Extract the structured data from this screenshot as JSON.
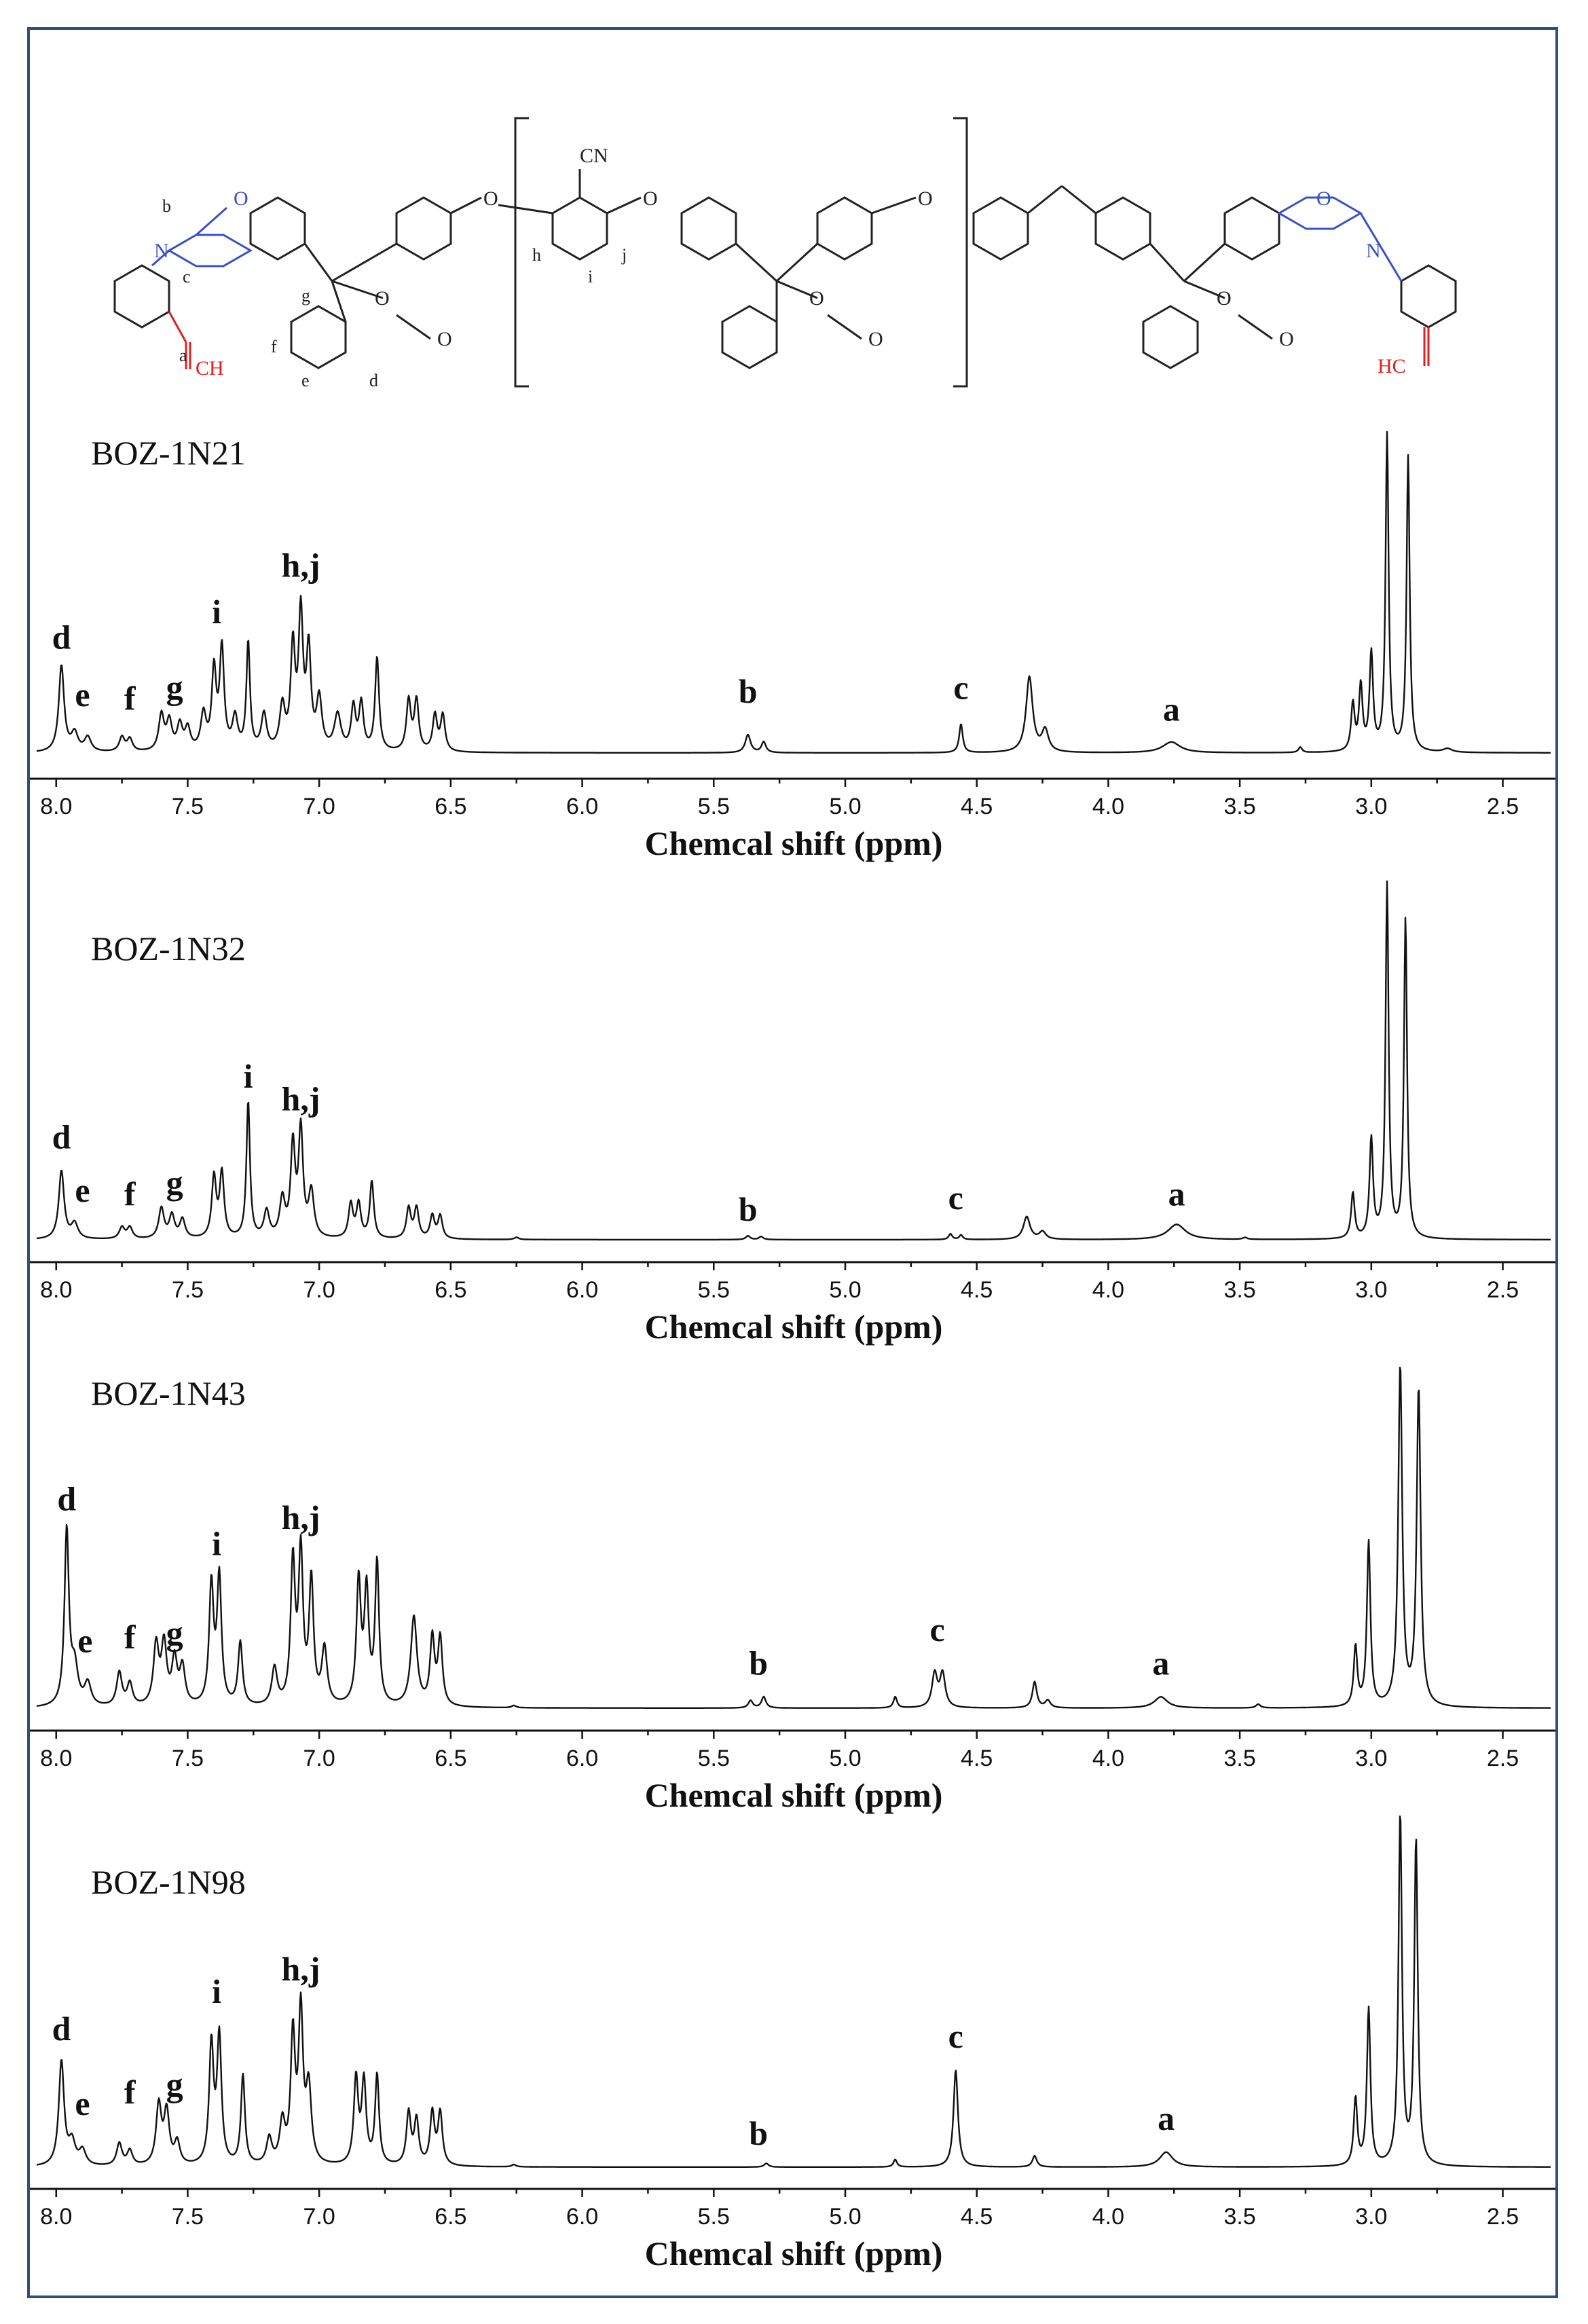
{
  "chart_data": {
    "type": "line",
    "x_axis": {
      "label": "Chemcal shift (ppm)",
      "ticks": [
        "8.0",
        "7.5",
        "7.0",
        "6.5",
        "6.0",
        "5.5",
        "5.0",
        "4.5",
        "4.0",
        "3.5",
        "3.0",
        "2.5"
      ],
      "xlim": [
        8.1,
        2.3
      ],
      "reversed": true
    },
    "structure_labels": {
      "ring_o": "O",
      "ring_n": "N",
      "alkyne_left": "CH",
      "alkyne_right": "HC",
      "cn": "CN",
      "ether_o": "O",
      "lactone_o": "O",
      "carbonyl_o": "O",
      "letters": [
        "a",
        "b",
        "c",
        "d",
        "e",
        "f",
        "g",
        "h",
        "i",
        "j"
      ]
    },
    "panels": [
      {
        "title": "BOZ-1N21",
        "peaks": [
          {
            "ppm": 7.98,
            "h": 0.24,
            "w": 0.012
          },
          {
            "ppm": 7.93,
            "h": 0.05,
            "w": 0.015
          },
          {
            "ppm": 7.88,
            "h": 0.04,
            "w": 0.015
          },
          {
            "ppm": 7.75,
            "h": 0.04,
            "w": 0.012
          },
          {
            "ppm": 7.72,
            "h": 0.035,
            "w": 0.012
          },
          {
            "ppm": 7.6,
            "h": 0.1,
            "w": 0.012
          },
          {
            "ppm": 7.57,
            "h": 0.08,
            "w": 0.012
          },
          {
            "ppm": 7.53,
            "h": 0.07,
            "w": 0.012
          },
          {
            "ppm": 7.5,
            "h": 0.06,
            "w": 0.012
          },
          {
            "ppm": 7.44,
            "h": 0.1,
            "w": 0.012
          },
          {
            "ppm": 7.4,
            "h": 0.22,
            "w": 0.01
          },
          {
            "ppm": 7.37,
            "h": 0.28,
            "w": 0.01
          },
          {
            "ppm": 7.32,
            "h": 0.09,
            "w": 0.012
          },
          {
            "ppm": 7.27,
            "h": 0.3,
            "w": 0.008
          },
          {
            "ppm": 7.21,
            "h": 0.1,
            "w": 0.012
          },
          {
            "ppm": 7.14,
            "h": 0.12,
            "w": 0.012
          },
          {
            "ppm": 7.1,
            "h": 0.28,
            "w": 0.01
          },
          {
            "ppm": 7.07,
            "h": 0.37,
            "w": 0.01
          },
          {
            "ppm": 7.04,
            "h": 0.27,
            "w": 0.01
          },
          {
            "ppm": 7.0,
            "h": 0.14,
            "w": 0.012
          },
          {
            "ppm": 6.93,
            "h": 0.1,
            "w": 0.015
          },
          {
            "ppm": 6.87,
            "h": 0.12,
            "w": 0.01
          },
          {
            "ppm": 6.84,
            "h": 0.13,
            "w": 0.01
          },
          {
            "ppm": 6.78,
            "h": 0.26,
            "w": 0.009
          },
          {
            "ppm": 6.66,
            "h": 0.14,
            "w": 0.01
          },
          {
            "ppm": 6.63,
            "h": 0.14,
            "w": 0.01
          },
          {
            "ppm": 6.56,
            "h": 0.1,
            "w": 0.01
          },
          {
            "ppm": 6.53,
            "h": 0.1,
            "w": 0.01
          },
          {
            "ppm": 5.37,
            "h": 0.05,
            "w": 0.012
          },
          {
            "ppm": 5.31,
            "h": 0.03,
            "w": 0.01
          },
          {
            "ppm": 4.56,
            "h": 0.08,
            "w": 0.008
          },
          {
            "ppm": 4.3,
            "h": 0.21,
            "w": 0.015
          },
          {
            "ppm": 4.24,
            "h": 0.06,
            "w": 0.015
          },
          {
            "ppm": 3.76,
            "h": 0.03,
            "w": 0.04
          },
          {
            "ppm": 3.27,
            "h": 0.015,
            "w": 0.008
          },
          {
            "ppm": 3.07,
            "h": 0.13,
            "w": 0.008
          },
          {
            "ppm": 3.04,
            "h": 0.18,
            "w": 0.008
          },
          {
            "ppm": 3.0,
            "h": 0.27,
            "w": 0.008
          },
          {
            "ppm": 2.94,
            "h": 0.88,
            "w": 0.007
          },
          {
            "ppm": 2.86,
            "h": 0.82,
            "w": 0.007
          },
          {
            "ppm": 2.71,
            "h": 0.01,
            "w": 0.02
          }
        ],
        "labels": [
          {
            "text": "d",
            "ppm": 7.98,
            "h": 0.29
          },
          {
            "text": "e",
            "ppm": 7.9,
            "h": 0.13
          },
          {
            "text": "f",
            "ppm": 7.72,
            "h": 0.12
          },
          {
            "text": "g",
            "ppm": 7.55,
            "h": 0.15
          },
          {
            "text": "i",
            "ppm": 7.39,
            "h": 0.36
          },
          {
            "text": "h,j",
            "ppm": 7.07,
            "h": 0.49
          },
          {
            "text": "b",
            "ppm": 5.37,
            "h": 0.14
          },
          {
            "text": "c",
            "ppm": 4.56,
            "h": 0.15
          },
          {
            "text": "a",
            "ppm": 3.76,
            "h": 0.09
          }
        ]
      },
      {
        "title": "BOZ-1N32",
        "peaks": [
          {
            "ppm": 7.98,
            "h": 0.18,
            "w": 0.012
          },
          {
            "ppm": 7.93,
            "h": 0.04,
            "w": 0.015
          },
          {
            "ppm": 7.75,
            "h": 0.03,
            "w": 0.012
          },
          {
            "ppm": 7.72,
            "h": 0.03,
            "w": 0.012
          },
          {
            "ppm": 7.6,
            "h": 0.08,
            "w": 0.012
          },
          {
            "ppm": 7.56,
            "h": 0.06,
            "w": 0.012
          },
          {
            "ppm": 7.52,
            "h": 0.05,
            "w": 0.012
          },
          {
            "ppm": 7.4,
            "h": 0.16,
            "w": 0.01
          },
          {
            "ppm": 7.37,
            "h": 0.17,
            "w": 0.01
          },
          {
            "ppm": 7.27,
            "h": 0.36,
            "w": 0.008
          },
          {
            "ppm": 7.2,
            "h": 0.07,
            "w": 0.012
          },
          {
            "ppm": 7.14,
            "h": 0.1,
            "w": 0.012
          },
          {
            "ppm": 7.1,
            "h": 0.24,
            "w": 0.01
          },
          {
            "ppm": 7.07,
            "h": 0.28,
            "w": 0.01
          },
          {
            "ppm": 7.03,
            "h": 0.12,
            "w": 0.012
          },
          {
            "ppm": 6.88,
            "h": 0.09,
            "w": 0.01
          },
          {
            "ppm": 6.85,
            "h": 0.09,
            "w": 0.01
          },
          {
            "ppm": 6.8,
            "h": 0.15,
            "w": 0.009
          },
          {
            "ppm": 6.66,
            "h": 0.08,
            "w": 0.01
          },
          {
            "ppm": 6.63,
            "h": 0.08,
            "w": 0.01
          },
          {
            "ppm": 6.57,
            "h": 0.06,
            "w": 0.01
          },
          {
            "ppm": 6.54,
            "h": 0.06,
            "w": 0.01
          },
          {
            "ppm": 6.25,
            "h": 0.006,
            "w": 0.01
          },
          {
            "ppm": 5.37,
            "h": 0.01,
            "w": 0.01
          },
          {
            "ppm": 5.32,
            "h": 0.008,
            "w": 0.01
          },
          {
            "ppm": 4.6,
            "h": 0.015,
            "w": 0.008
          },
          {
            "ppm": 4.56,
            "h": 0.012,
            "w": 0.008
          },
          {
            "ppm": 4.31,
            "h": 0.06,
            "w": 0.015
          },
          {
            "ppm": 4.25,
            "h": 0.02,
            "w": 0.015
          },
          {
            "ppm": 3.74,
            "h": 0.04,
            "w": 0.04
          },
          {
            "ppm": 3.48,
            "h": 0.005,
            "w": 0.01
          },
          {
            "ppm": 3.07,
            "h": 0.12,
            "w": 0.008
          },
          {
            "ppm": 3.0,
            "h": 0.26,
            "w": 0.008
          },
          {
            "ppm": 2.94,
            "h": 0.93,
            "w": 0.007
          },
          {
            "ppm": 2.87,
            "h": 0.84,
            "w": 0.007
          }
        ],
        "labels": [
          {
            "text": "d",
            "ppm": 7.98,
            "h": 0.24
          },
          {
            "text": "e",
            "ppm": 7.9,
            "h": 0.1
          },
          {
            "text": "f",
            "ppm": 7.72,
            "h": 0.09
          },
          {
            "text": "g",
            "ppm": 7.55,
            "h": 0.12
          },
          {
            "text": "i",
            "ppm": 7.27,
            "h": 0.4
          },
          {
            "text": "h,j",
            "ppm": 7.07,
            "h": 0.34
          },
          {
            "text": "b",
            "ppm": 5.37,
            "h": 0.05
          },
          {
            "text": "c",
            "ppm": 4.58,
            "h": 0.08
          },
          {
            "text": "a",
            "ppm": 3.74,
            "h": 0.09
          }
        ]
      },
      {
        "title": "BOZ-1N43",
        "peaks": [
          {
            "ppm": 7.96,
            "h": 0.47,
            "w": 0.01
          },
          {
            "ppm": 7.93,
            "h": 0.1,
            "w": 0.015
          },
          {
            "ppm": 7.88,
            "h": 0.06,
            "w": 0.015
          },
          {
            "ppm": 7.76,
            "h": 0.09,
            "w": 0.012
          },
          {
            "ppm": 7.72,
            "h": 0.06,
            "w": 0.012
          },
          {
            "ppm": 7.62,
            "h": 0.16,
            "w": 0.012
          },
          {
            "ppm": 7.59,
            "h": 0.16,
            "w": 0.012
          },
          {
            "ppm": 7.55,
            "h": 0.12,
            "w": 0.012
          },
          {
            "ppm": 7.52,
            "h": 0.1,
            "w": 0.012
          },
          {
            "ppm": 7.41,
            "h": 0.32,
            "w": 0.01
          },
          {
            "ppm": 7.38,
            "h": 0.34,
            "w": 0.01
          },
          {
            "ppm": 7.3,
            "h": 0.17,
            "w": 0.01
          },
          {
            "ppm": 7.17,
            "h": 0.1,
            "w": 0.012
          },
          {
            "ppm": 7.1,
            "h": 0.38,
            "w": 0.01
          },
          {
            "ppm": 7.07,
            "h": 0.4,
            "w": 0.01
          },
          {
            "ppm": 7.03,
            "h": 0.33,
            "w": 0.01
          },
          {
            "ppm": 6.98,
            "h": 0.15,
            "w": 0.012
          },
          {
            "ppm": 6.85,
            "h": 0.33,
            "w": 0.01
          },
          {
            "ppm": 6.82,
            "h": 0.3,
            "w": 0.01
          },
          {
            "ppm": 6.78,
            "h": 0.38,
            "w": 0.009
          },
          {
            "ppm": 6.64,
            "h": 0.24,
            "w": 0.014
          },
          {
            "ppm": 6.57,
            "h": 0.18,
            "w": 0.01
          },
          {
            "ppm": 6.54,
            "h": 0.18,
            "w": 0.01
          },
          {
            "ppm": 6.26,
            "h": 0.006,
            "w": 0.01
          },
          {
            "ppm": 5.36,
            "h": 0.02,
            "w": 0.01
          },
          {
            "ppm": 5.31,
            "h": 0.03,
            "w": 0.01
          },
          {
            "ppm": 4.81,
            "h": 0.03,
            "w": 0.008
          },
          {
            "ppm": 4.66,
            "h": 0.09,
            "w": 0.012
          },
          {
            "ppm": 4.63,
            "h": 0.09,
            "w": 0.012
          },
          {
            "ppm": 4.28,
            "h": 0.07,
            "w": 0.01
          },
          {
            "ppm": 4.23,
            "h": 0.02,
            "w": 0.012
          },
          {
            "ppm": 3.8,
            "h": 0.03,
            "w": 0.03
          },
          {
            "ppm": 3.43,
            "h": 0.01,
            "w": 0.01
          },
          {
            "ppm": 3.06,
            "h": 0.16,
            "w": 0.008
          },
          {
            "ppm": 3.01,
            "h": 0.44,
            "w": 0.008
          },
          {
            "ppm": 2.89,
            "h": 0.91,
            "w": 0.009
          },
          {
            "ppm": 2.82,
            "h": 0.85,
            "w": 0.009
          }
        ],
        "labels": [
          {
            "text": "d",
            "ppm": 7.96,
            "h": 0.53
          },
          {
            "text": "e",
            "ppm": 7.89,
            "h": 0.15
          },
          {
            "text": "f",
            "ppm": 7.72,
            "h": 0.16
          },
          {
            "text": "g",
            "ppm": 7.55,
            "h": 0.17
          },
          {
            "text": "i",
            "ppm": 7.39,
            "h": 0.41
          },
          {
            "text": "h,j",
            "ppm": 7.07,
            "h": 0.48
          },
          {
            "text": "b",
            "ppm": 5.33,
            "h": 0.09
          },
          {
            "text": "c",
            "ppm": 4.65,
            "h": 0.18
          },
          {
            "text": "a",
            "ppm": 3.8,
            "h": 0.09
          }
        ]
      },
      {
        "title": "BOZ-1N98",
        "peaks": [
          {
            "ppm": 7.98,
            "h": 0.28,
            "w": 0.012
          },
          {
            "ppm": 7.94,
            "h": 0.06,
            "w": 0.015
          },
          {
            "ppm": 7.9,
            "h": 0.04,
            "w": 0.015
          },
          {
            "ppm": 7.76,
            "h": 0.06,
            "w": 0.012
          },
          {
            "ppm": 7.72,
            "h": 0.04,
            "w": 0.012
          },
          {
            "ppm": 7.61,
            "h": 0.16,
            "w": 0.012
          },
          {
            "ppm": 7.58,
            "h": 0.14,
            "w": 0.012
          },
          {
            "ppm": 7.54,
            "h": 0.06,
            "w": 0.012
          },
          {
            "ppm": 7.41,
            "h": 0.32,
            "w": 0.01
          },
          {
            "ppm": 7.38,
            "h": 0.34,
            "w": 0.01
          },
          {
            "ppm": 7.29,
            "h": 0.24,
            "w": 0.009
          },
          {
            "ppm": 7.19,
            "h": 0.07,
            "w": 0.012
          },
          {
            "ppm": 7.14,
            "h": 0.11,
            "w": 0.012
          },
          {
            "ppm": 7.1,
            "h": 0.34,
            "w": 0.01
          },
          {
            "ppm": 7.07,
            "h": 0.4,
            "w": 0.01
          },
          {
            "ppm": 7.04,
            "h": 0.2,
            "w": 0.012
          },
          {
            "ppm": 6.86,
            "h": 0.23,
            "w": 0.01
          },
          {
            "ppm": 6.83,
            "h": 0.22,
            "w": 0.01
          },
          {
            "ppm": 6.78,
            "h": 0.24,
            "w": 0.009
          },
          {
            "ppm": 6.66,
            "h": 0.14,
            "w": 0.01
          },
          {
            "ppm": 6.63,
            "h": 0.12,
            "w": 0.01
          },
          {
            "ppm": 6.57,
            "h": 0.14,
            "w": 0.01
          },
          {
            "ppm": 6.54,
            "h": 0.14,
            "w": 0.01
          },
          {
            "ppm": 6.26,
            "h": 0.006,
            "w": 0.01
          },
          {
            "ppm": 5.3,
            "h": 0.01,
            "w": 0.01
          },
          {
            "ppm": 4.81,
            "h": 0.02,
            "w": 0.008
          },
          {
            "ppm": 4.58,
            "h": 0.26,
            "w": 0.01
          },
          {
            "ppm": 4.28,
            "h": 0.03,
            "w": 0.01
          },
          {
            "ppm": 3.78,
            "h": 0.04,
            "w": 0.03
          },
          {
            "ppm": 3.06,
            "h": 0.18,
            "w": 0.008
          },
          {
            "ppm": 3.01,
            "h": 0.42,
            "w": 0.008
          },
          {
            "ppm": 2.89,
            "h": 0.94,
            "w": 0.008
          },
          {
            "ppm": 2.83,
            "h": 0.87,
            "w": 0.008
          }
        ],
        "labels": [
          {
            "text": "d",
            "ppm": 7.98,
            "h": 0.34
          },
          {
            "text": "e",
            "ppm": 7.9,
            "h": 0.14
          },
          {
            "text": "f",
            "ppm": 7.72,
            "h": 0.17
          },
          {
            "text": "g",
            "ppm": 7.55,
            "h": 0.19
          },
          {
            "text": "i",
            "ppm": 7.39,
            "h": 0.44
          },
          {
            "text": "h,j",
            "ppm": 7.07,
            "h": 0.5
          },
          {
            "text": "b",
            "ppm": 5.33,
            "h": 0.06
          },
          {
            "text": "c",
            "ppm": 4.58,
            "h": 0.32
          },
          {
            "text": "a",
            "ppm": 3.78,
            "h": 0.1
          }
        ]
      }
    ]
  }
}
